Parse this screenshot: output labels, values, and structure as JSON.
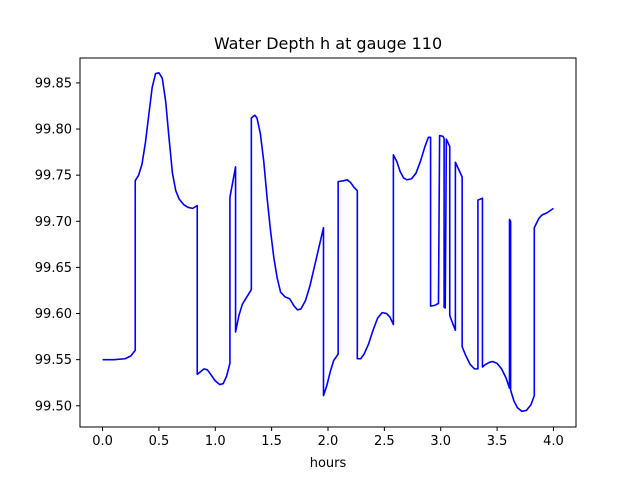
{
  "chart_data": {
    "type": "line",
    "title": "Water Depth h at gauge 110",
    "xlabel": "hours",
    "ylabel": "",
    "xlim": [
      -0.2,
      4.2
    ],
    "ylim": [
      99.477,
      99.877
    ],
    "xticks": [
      0.0,
      0.5,
      1.0,
      1.5,
      2.0,
      2.5,
      3.0,
      3.5,
      4.0
    ],
    "xtick_labels": [
      "0.0",
      "0.5",
      "1.0",
      "1.5",
      "2.0",
      "2.5",
      "3.0",
      "3.5",
      "4.0"
    ],
    "yticks": [
      99.5,
      99.55,
      99.6,
      99.65,
      99.7,
      99.75,
      99.8,
      99.85
    ],
    "ytick_labels": [
      "99.50",
      "99.55",
      "99.60",
      "99.65",
      "99.70",
      "99.75",
      "99.80",
      "99.85"
    ],
    "grid": false,
    "series": [
      {
        "color": "#0000ff",
        "points": [
          [
            0.0,
            99.55
          ],
          [
            0.1,
            99.55
          ],
          [
            0.2,
            99.551
          ],
          [
            0.25,
            99.554
          ],
          [
            0.29,
            99.56
          ],
          [
            0.29,
            99.744
          ],
          [
            0.32,
            99.75
          ],
          [
            0.35,
            99.762
          ],
          [
            0.38,
            99.785
          ],
          [
            0.41,
            99.815
          ],
          [
            0.44,
            99.845
          ],
          [
            0.47,
            99.86
          ],
          [
            0.5,
            99.861
          ],
          [
            0.53,
            99.855
          ],
          [
            0.56,
            99.83
          ],
          [
            0.59,
            99.79
          ],
          [
            0.62,
            99.752
          ],
          [
            0.65,
            99.733
          ],
          [
            0.68,
            99.724
          ],
          [
            0.72,
            99.718
          ],
          [
            0.76,
            99.715
          ],
          [
            0.8,
            99.714
          ],
          [
            0.84,
            99.717
          ],
          [
            0.84,
            99.534
          ],
          [
            0.87,
            99.537
          ],
          [
            0.9,
            99.54
          ],
          [
            0.93,
            99.539
          ],
          [
            0.96,
            99.534
          ],
          [
            1.0,
            99.527
          ],
          [
            1.04,
            99.523
          ],
          [
            1.07,
            99.524
          ],
          [
            1.1,
            99.532
          ],
          [
            1.13,
            99.546
          ],
          [
            1.13,
            99.726
          ],
          [
            1.18,
            99.759
          ],
          [
            1.18,
            99.58
          ],
          [
            1.21,
            99.598
          ],
          [
            1.24,
            99.61
          ],
          [
            1.28,
            99.618
          ],
          [
            1.32,
            99.626
          ],
          [
            1.32,
            99.812
          ],
          [
            1.35,
            99.815
          ],
          [
            1.37,
            99.812
          ],
          [
            1.4,
            99.795
          ],
          [
            1.43,
            99.765
          ],
          [
            1.46,
            99.725
          ],
          [
            1.49,
            99.69
          ],
          [
            1.52,
            99.66
          ],
          [
            1.55,
            99.638
          ],
          [
            1.58,
            99.623
          ],
          [
            1.62,
            99.618
          ],
          [
            1.66,
            99.616
          ],
          [
            1.7,
            99.608
          ],
          [
            1.73,
            99.604
          ],
          [
            1.76,
            99.605
          ],
          [
            1.8,
            99.614
          ],
          [
            1.84,
            99.63
          ],
          [
            1.88,
            99.651
          ],
          [
            1.92,
            99.672
          ],
          [
            1.96,
            99.693
          ],
          [
            1.96,
            99.511
          ],
          [
            1.99,
            99.522
          ],
          [
            2.02,
            99.537
          ],
          [
            2.05,
            99.549
          ],
          [
            2.09,
            99.556
          ],
          [
            2.09,
            99.743
          ],
          [
            2.14,
            99.744
          ],
          [
            2.17,
            99.745
          ],
          [
            2.2,
            99.742
          ],
          [
            2.23,
            99.737
          ],
          [
            2.26,
            99.733
          ],
          [
            2.26,
            99.551
          ],
          [
            2.29,
            99.551
          ],
          [
            2.32,
            99.556
          ],
          [
            2.36,
            99.567
          ],
          [
            2.4,
            99.582
          ],
          [
            2.44,
            99.595
          ],
          [
            2.48,
            99.601
          ],
          [
            2.52,
            99.6
          ],
          [
            2.55,
            99.596
          ],
          [
            2.58,
            99.588
          ],
          [
            2.58,
            99.772
          ],
          [
            2.61,
            99.765
          ],
          [
            2.64,
            99.754
          ],
          [
            2.67,
            99.747
          ],
          [
            2.7,
            99.745
          ],
          [
            2.74,
            99.746
          ],
          [
            2.78,
            99.752
          ],
          [
            2.82,
            99.765
          ],
          [
            2.86,
            99.781
          ],
          [
            2.89,
            99.791
          ],
          [
            2.91,
            99.791
          ],
          [
            2.91,
            99.608
          ],
          [
            2.95,
            99.609
          ],
          [
            2.98,
            99.611
          ],
          [
            2.99,
            99.793
          ],
          [
            3.02,
            99.792
          ],
          [
            3.03,
            99.79
          ],
          [
            3.03,
            99.607
          ],
          [
            3.04,
            99.606
          ],
          [
            3.05,
            99.789
          ],
          [
            3.08,
            99.781
          ],
          [
            3.08,
            99.598
          ],
          [
            3.11,
            99.588
          ],
          [
            3.13,
            99.582
          ],
          [
            3.13,
            99.764
          ],
          [
            3.16,
            99.756
          ],
          [
            3.19,
            99.748
          ],
          [
            3.19,
            99.564
          ],
          [
            3.22,
            99.555
          ],
          [
            3.26,
            99.545
          ],
          [
            3.3,
            99.54
          ],
          [
            3.33,
            99.54
          ],
          [
            3.33,
            99.723
          ],
          [
            3.37,
            99.725
          ],
          [
            3.37,
            99.542
          ],
          [
            3.4,
            99.545
          ],
          [
            3.43,
            99.547
          ],
          [
            3.46,
            99.548
          ],
          [
            3.5,
            99.546
          ],
          [
            3.54,
            99.54
          ],
          [
            3.58,
            99.53
          ],
          [
            3.61,
            99.519
          ],
          [
            3.61,
            99.702
          ],
          [
            3.62,
            99.7
          ],
          [
            3.62,
            99.517
          ],
          [
            3.65,
            99.505
          ],
          [
            3.68,
            99.498
          ],
          [
            3.72,
            99.494
          ],
          [
            3.76,
            99.495
          ],
          [
            3.8,
            99.501
          ],
          [
            3.83,
            99.511
          ],
          [
            3.83,
            99.693
          ],
          [
            3.87,
            99.703
          ],
          [
            3.9,
            99.707
          ],
          [
            3.94,
            99.709
          ],
          [
            4.0,
            99.714
          ]
        ]
      }
    ]
  }
}
